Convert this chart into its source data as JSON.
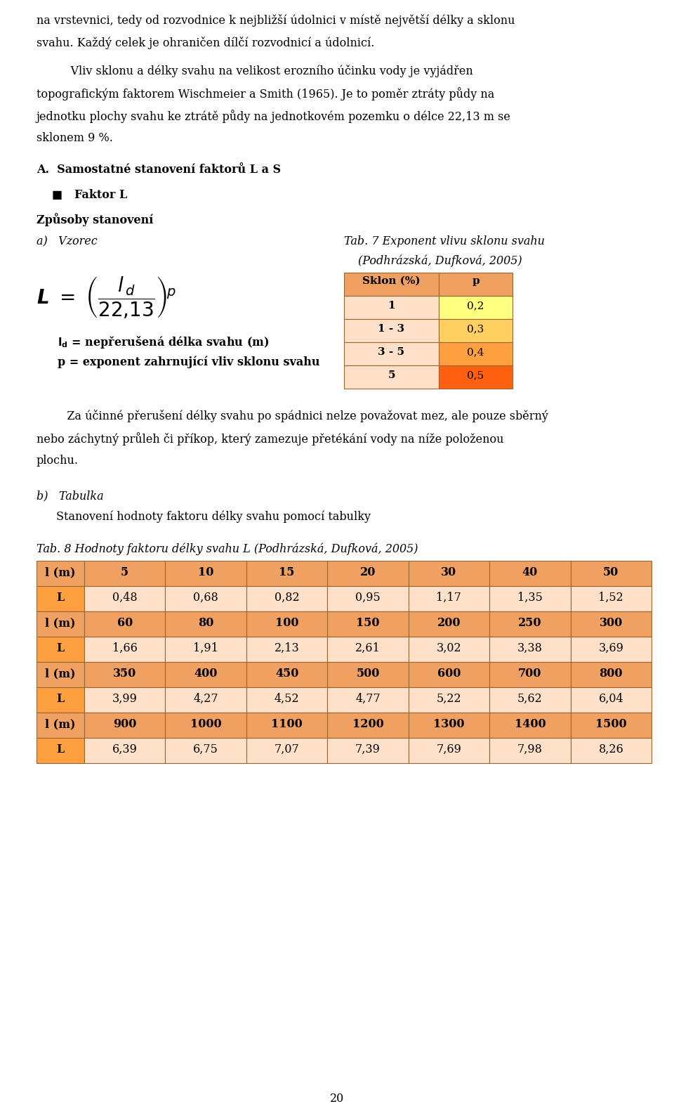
{
  "page_bg": "#ffffff",
  "line1": "na vrstevnici, tedy od rozvodnice k nejbližší údolnici v místě největší délky a sklonu",
  "line2": "svahu. Každý celek je ohraničen dílčí rozvodnicí a údolnicí.",
  "para1_line1": "    Vliv sklonu a délky svahu na velikost erozního účinku vody je vyjádřen",
  "para1_line2": "topografickým faktorem Wischmeier a Smith (1965). Je to poměr ztráty půdy na",
  "para1_line3": "jednotku plochy svahu ke ztrátě půdy na jednotkovém pozemku o délce 22,13 m se",
  "para1_line4": "sklonem 9 %.",
  "section_A": "A.  Samostatné stanovení faktorů L a S",
  "bullet_L": "■   Faktor L",
  "zpusoby": "Způsoby stanovení",
  "a_vzorec": "a)   Vzorec",
  "tab7_t1": "Tab. 7 Exponent vlivu sklonu svahu",
  "tab7_t2": "(Podhrázská, Dufková, 2005)",
  "sklon_header": "Sklon (%)",
  "p_header": "p",
  "sklon_rows": [
    "1",
    "1 - 3",
    "3 - 5",
    "5"
  ],
  "p_rows": [
    "0,2",
    "0,3",
    "0,4",
    "0,5"
  ],
  "header_bg": "#F0A060",
  "sklon_bg": "#FFE0C8",
  "p_row0_bg": "#FFFF80",
  "p_row1_bg": "#FFD060",
  "p_row2_bg": "#FFA040",
  "p_row3_bg": "#FF6010",
  "ld_line": "l",
  "ld_line2": "d = nepřerušená délka svahu (m)",
  "p_line": "p = exponent zahrnující vliv sklonu svahu",
  "para2_line1": "   Za účinné přerušení délky svahu po spádnici nelze považovat mez, ale pouze sběrný",
  "para2_line2": "nebo záchytný průleh či příkop, který zamezuje přetékání vody na níže položenou",
  "para2_line3": "plochu.",
  "b_tabulka": "b)   Tabulka",
  "b_sub": "   Stanovení hodnoty faktoru délky svahu pomocí tabulky",
  "tab8_caption": "Tab. 8 Hodnoty faktoru délky svahu L (Podhrázská, Dufková, 2005)",
  "tab8_h1": [
    "l (m)",
    "5",
    "10",
    "15",
    "20",
    "30",
    "40",
    "50"
  ],
  "tab8_r1": [
    "L",
    "0,48",
    "0,68",
    "0,82",
    "0,95",
    "1,17",
    "1,35",
    "1,52"
  ],
  "tab8_h2": [
    "l (m)",
    "60",
    "80",
    "100",
    "150",
    "200",
    "250",
    "300"
  ],
  "tab8_r2": [
    "L",
    "1,66",
    "1,91",
    "2,13",
    "2,61",
    "3,02",
    "3,38",
    "3,69"
  ],
  "tab8_h3": [
    "l (m)",
    "350",
    "400",
    "450",
    "500",
    "600",
    "700",
    "800"
  ],
  "tab8_r3": [
    "L",
    "3,99",
    "4,27",
    "4,52",
    "4,77",
    "5,22",
    "5,62",
    "6,04"
  ],
  "tab8_h4": [
    "l (m)",
    "900",
    "1000",
    "1100",
    "1200",
    "1300",
    "1400",
    "1500"
  ],
  "tab8_r4": [
    "L",
    "6,39",
    "6,75",
    "7,07",
    "7,39",
    "7,69",
    "7,98",
    "8,26"
  ],
  "tab8_hdr_bg": "#F0A060",
  "tab8_lm_bg": "#F0A060",
  "tab8_L_bg": "#FFA040",
  "tab8_data_bg": "#FFE0C8",
  "page_number": "20"
}
